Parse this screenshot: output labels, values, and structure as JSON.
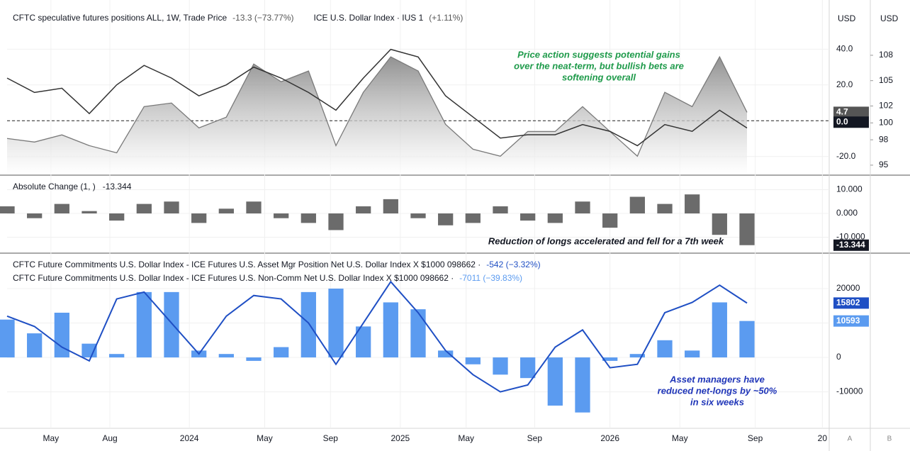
{
  "chart_data": [
    {
      "type": "line",
      "x": [
        0,
        2,
        4,
        6,
        8,
        10,
        12,
        14,
        16,
        18,
        20,
        22,
        24,
        26,
        28,
        30,
        32,
        34,
        36,
        38,
        40,
        42,
        44,
        46,
        48,
        50,
        52,
        54
      ],
      "xlim": [
        0,
        60
      ],
      "axis_unit": "USD",
      "y2_unit": "USD",
      "series": [
        {
          "name": "CFTC speculative futures positions ALL, 1W, Trade Price",
          "change_label": "-13.3 (−73.77%)",
          "type": "area",
          "axis": "y",
          "color": "#7a7a7a",
          "badge": true,
          "values": [
            -9.9,
            -11.9,
            -7.9,
            -13.9,
            -17.9,
            7.9,
            9.9,
            -4.0,
            2.0,
            31.7,
            21.8,
            27.8,
            -13.9,
            15.9,
            35.7,
            27.8,
            -2.0,
            -15.9,
            -19.8,
            -6.0,
            -6.0,
            7.9,
            -6.0,
            -19.8,
            15.9,
            7.9,
            35.7,
            4.7
          ]
        },
        {
          "name": "ICE U.S. Dollar Index · IUS  1",
          "change_label": "(+1.11%)",
          "type": "line",
          "axis": "y2",
          "color": "#333333",
          "badge": false,
          "values": [
            105.3,
            103.6,
            104.1,
            101.1,
            104.5,
            106.8,
            105.3,
            103.2,
            104.5,
            106.6,
            105.3,
            103.6,
            101.5,
            105.3,
            108.7,
            107.8,
            103.2,
            100.7,
            98.2,
            98.6,
            98.6,
            99.8,
            99.0,
            97.3,
            99.8,
            99.0,
            101.5,
            99.4
          ]
        }
      ],
      "ylim": [
        -30,
        63.5
      ],
      "yticks": [
        {
          "value": 40,
          "label": "40.0"
        },
        {
          "value": 20,
          "label": "20.0"
        },
        {
          "value": 0,
          "label": "0.0"
        },
        {
          "value": -20,
          "label": "-20.0"
        }
      ],
      "y2lim": [
        93.9,
        113.7
      ],
      "y2ticks": [
        108,
        105,
        102,
        100,
        98,
        95
      ],
      "reference_line": {
        "value": 0,
        "label": "0.0"
      },
      "annotation": [
        "Price action suggests potential gains",
        "over the neat-term, but bullish bets are",
        "softening overall"
      ],
      "annotation_color": "#1e9a4a"
    },
    {
      "type": "bar",
      "title": "Absolute Change (1, )",
      "x": [
        0,
        2,
        4,
        6,
        8,
        10,
        12,
        14,
        16,
        18,
        20,
        22,
        24,
        26,
        28,
        30,
        32,
        34,
        36,
        38,
        40,
        42,
        44,
        46,
        48,
        50,
        52,
        54
      ],
      "xlim": [
        0,
        60
      ],
      "series": [
        {
          "name": "Absolute Change",
          "type": "bar",
          "axis": "y",
          "color": "#6b6b6b",
          "badge": true,
          "values": [
            3,
            -2,
            4,
            1,
            -3,
            4,
            5,
            -4,
            2,
            5,
            -2,
            -4,
            -7,
            3,
            6,
            -2,
            -5,
            -4,
            3,
            -3,
            -4,
            5,
            -6,
            7,
            4,
            8,
            -9,
            -13.344
          ]
        }
      ],
      "ylim": [
        -16.4,
        15.8
      ],
      "yticks": [
        {
          "value": 10,
          "label": "10.000"
        },
        {
          "value": 0,
          "label": "0.000"
        },
        {
          "value": -10,
          "label": "-10.000"
        }
      ],
      "annotation": [
        "Reduction of longs accelerated and fell for a 7th week"
      ],
      "annotation_color": "#131722"
    },
    {
      "type": "bar",
      "x": [
        0,
        2,
        4,
        6,
        8,
        10,
        12,
        14,
        16,
        18,
        20,
        22,
        24,
        26,
        28,
        30,
        32,
        34,
        36,
        38,
        40,
        42,
        44,
        46,
        48,
        50,
        52,
        54
      ],
      "xlim": [
        0,
        60
      ],
      "series": [
        {
          "name": "CFTC Future Commitments U.S. Dollar Index - ICE Futures U.S. Asset Mgr Position Net U.S. Dollar Index X $1000 098662 ·",
          "change_label": "-542 (−3.32%)",
          "type": "line",
          "axis": "y",
          "color": "#1f4fc4",
          "badge": true,
          "values": [
            12000,
            9000,
            3000,
            -1000,
            17000,
            19000,
            10000,
            1000,
            12000,
            18000,
            17000,
            10000,
            -2000,
            10000,
            22000,
            13000,
            2000,
            -5000,
            -10000,
            -8000,
            3000,
            8000,
            -3000,
            -2000,
            13000,
            16000,
            21000,
            15802
          ]
        },
        {
          "name": "CFTC Future Commitments U.S. Dollar Index - ICE Futures U.S. Non-Comm Net U.S. Dollar Index X $1000 098662 ·",
          "change_label": "-7011 (−39.83%)",
          "type": "bar",
          "axis": "y",
          "color": "#5b9bf0",
          "badge": true,
          "values": [
            11000,
            7000,
            13000,
            4000,
            1000,
            19000,
            19000,
            2000,
            1000,
            -1000,
            3000,
            19000,
            20000,
            9000,
            16000,
            14000,
            2000,
            -2000,
            -5000,
            -6000,
            -14000,
            -16000,
            -1000,
            1000,
            5000,
            2000,
            16000,
            10593
          ]
        }
      ],
      "ylim": [
        -20600,
        30100
      ],
      "yticks": [
        20000,
        10000,
        0,
        -10000
      ],
      "xticks": [
        {
          "value": 3.2,
          "label": "May"
        },
        {
          "value": 7.5,
          "label": "Aug"
        },
        {
          "value": 13.3,
          "label": "2024"
        },
        {
          "value": 18.8,
          "label": "May"
        },
        {
          "value": 23.6,
          "label": "Sep"
        },
        {
          "value": 28.7,
          "label": "2025"
        },
        {
          "value": 33.5,
          "label": "May"
        },
        {
          "value": 38.5,
          "label": "Sep"
        },
        {
          "value": 44,
          "label": "2026"
        },
        {
          "value": 49.1,
          "label": "May"
        },
        {
          "value": 54.6,
          "label": "Sep"
        },
        {
          "value": 59.5,
          "label": "20"
        }
      ],
      "annotation": [
        "Asset managers have",
        "reduced net-longs by ~50%",
        "in six weeks"
      ],
      "annotation_color": "#1f35b8",
      "controls": [
        "A",
        "B"
      ]
    }
  ]
}
